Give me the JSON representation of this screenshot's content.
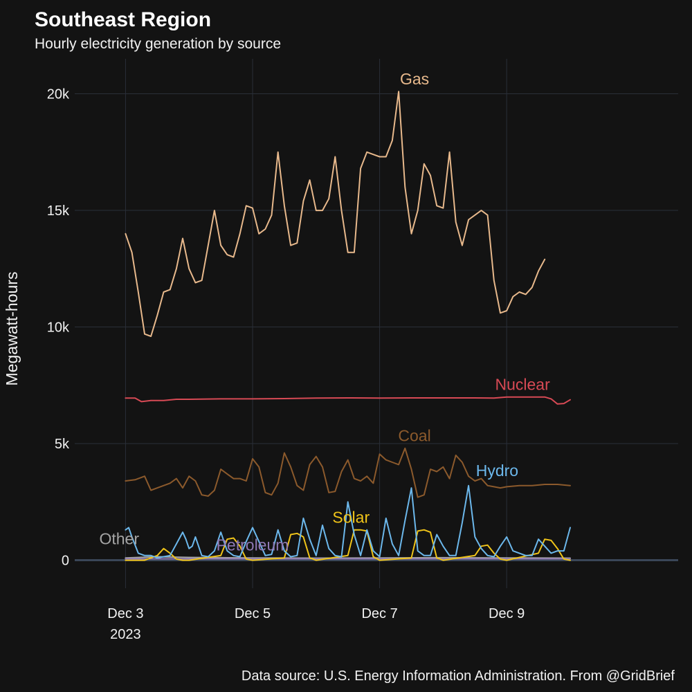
{
  "chart_data": {
    "type": "line",
    "title": "Southeast Region",
    "subtitle": "Hourly electricity generation by source",
    "ylabel": "Megawatt-hours",
    "xlabel": "",
    "caption": "Data source: U.S. Energy Information Administration. From @GridBrief",
    "x_unit": "days since Dec 3, 2023 00:00",
    "xlim": [
      -0.8,
      8.7
    ],
    "ylim": [
      -1200,
      21500
    ],
    "y_ticks": [
      {
        "value": 0,
        "label": "0"
      },
      {
        "value": 5000,
        "label": "5k"
      },
      {
        "value": 10000,
        "label": "10k"
      },
      {
        "value": 15000,
        "label": "15k"
      },
      {
        "value": 20000,
        "label": "20k"
      }
    ],
    "x_ticks": [
      {
        "value": 0,
        "label": "Dec 3",
        "sublabel": "2023"
      },
      {
        "value": 2,
        "label": "Dec 5",
        "sublabel": ""
      },
      {
        "value": 4,
        "label": "Dec 7",
        "sublabel": ""
      },
      {
        "value": 6,
        "label": "Dec 9",
        "sublabel": ""
      }
    ],
    "series": [
      {
        "name": "Gas",
        "color": "#e8b98c",
        "label": {
          "text": "Gas",
          "x": 4.55,
          "y": 20400
        },
        "x": [
          0.0,
          0.1,
          0.2,
          0.3,
          0.4,
          0.5,
          0.6,
          0.7,
          0.8,
          0.9,
          1.0,
          1.1,
          1.2,
          1.3,
          1.4,
          1.5,
          1.6,
          1.7,
          1.8,
          1.9,
          2.0,
          2.1,
          2.2,
          2.3,
          2.4,
          2.5,
          2.6,
          2.7,
          2.8,
          2.9,
          3.0,
          3.1,
          3.2,
          3.3,
          3.4,
          3.5,
          3.6,
          3.7,
          3.8,
          3.9,
          4.0,
          4.1,
          4.2,
          4.3,
          4.4,
          4.5,
          4.6,
          4.7,
          4.8,
          4.9,
          5.0,
          5.1,
          5.2,
          5.3,
          5.4,
          5.5,
          5.6,
          5.7,
          5.8,
          5.9,
          6.0,
          6.1,
          6.2,
          6.3,
          6.4,
          6.5,
          6.6,
          6.7,
          6.8,
          6.9,
          7.0
        ],
        "values": [
          14000,
          13200,
          11500,
          9700,
          9600,
          10500,
          11500,
          11600,
          12500,
          13800,
          12500,
          11900,
          12000,
          13500,
          15000,
          13500,
          13100,
          13000,
          14000,
          15200,
          15100,
          14000,
          14200,
          14800,
          17500,
          15200,
          13500,
          13600,
          15400,
          16300,
          15000,
          15000,
          15500,
          17300,
          15000,
          13200,
          13200,
          16800,
          17500,
          17400,
          17300,
          17300,
          18000,
          20100,
          16000,
          14000,
          15000,
          17000,
          16500,
          15200,
          15100,
          17500,
          14500,
          13500,
          14600,
          14800,
          15000,
          14800,
          12000,
          10600,
          10700,
          11300,
          11500,
          11400,
          11700,
          12400,
          12900,
          null,
          null,
          null,
          null
        ]
      },
      {
        "name": "Nuclear",
        "color": "#d84a55",
        "label": {
          "text": "Nuclear",
          "x": 6.25,
          "y": 7300
        },
        "x": [
          0.0,
          0.15,
          0.25,
          0.4,
          0.6,
          0.8,
          1.0,
          1.5,
          2.0,
          2.5,
          3.0,
          3.5,
          4.0,
          4.5,
          5.0,
          5.5,
          5.8,
          6.0,
          6.3,
          6.6,
          6.7,
          6.8,
          6.9,
          7.0
        ],
        "values": [
          6950,
          6950,
          6800,
          6850,
          6850,
          6900,
          6900,
          6920,
          6920,
          6930,
          6950,
          6960,
          6950,
          6960,
          6960,
          6960,
          6950,
          7000,
          7000,
          7000,
          6920,
          6700,
          6720,
          6880
        ]
      },
      {
        "name": "Coal",
        "color": "#8c5a2c",
        "label": {
          "text": "Coal",
          "x": 4.55,
          "y": 5100
        },
        "x": [
          0.0,
          0.15,
          0.3,
          0.4,
          0.5,
          0.6,
          0.7,
          0.8,
          0.9,
          1.0,
          1.1,
          1.2,
          1.3,
          1.4,
          1.5,
          1.6,
          1.7,
          1.8,
          1.9,
          2.0,
          2.1,
          2.2,
          2.3,
          2.4,
          2.5,
          2.6,
          2.7,
          2.8,
          2.9,
          3.0,
          3.1,
          3.2,
          3.3,
          3.4,
          3.5,
          3.6,
          3.7,
          3.8,
          3.9,
          4.0,
          4.1,
          4.2,
          4.3,
          4.4,
          4.5,
          4.6,
          4.7,
          4.8,
          4.9,
          5.0,
          5.1,
          5.2,
          5.3,
          5.4,
          5.5,
          5.6,
          5.7,
          5.8,
          5.9,
          6.0,
          6.2,
          6.4,
          6.6,
          6.8,
          7.0
        ],
        "values": [
          3400,
          3450,
          3600,
          3000,
          3100,
          3200,
          3300,
          3500,
          3100,
          3600,
          3400,
          2800,
          2750,
          3000,
          3900,
          3700,
          3500,
          3500,
          3400,
          4350,
          4000,
          2900,
          2800,
          3300,
          4600,
          4000,
          3200,
          3000,
          4100,
          4450,
          4000,
          2900,
          2950,
          3800,
          4300,
          3500,
          3400,
          3600,
          3300,
          4550,
          4300,
          4200,
          4100,
          4800,
          3900,
          2700,
          2800,
          3900,
          3800,
          4000,
          3500,
          4500,
          4200,
          3600,
          3400,
          3500,
          3200,
          3150,
          3100,
          3150,
          3200,
          3200,
          3250,
          3250,
          3200
        ]
      },
      {
        "name": "Hydro",
        "color": "#6cb8ec",
        "label": {
          "text": "Hydro",
          "x": 5.85,
          "y": 3600
        },
        "x": [
          0.0,
          0.05,
          0.1,
          0.2,
          0.3,
          0.4,
          0.5,
          0.6,
          0.7,
          0.8,
          0.9,
          0.95,
          1.0,
          1.05,
          1.1,
          1.2,
          1.3,
          1.4,
          1.5,
          1.6,
          1.7,
          1.8,
          1.9,
          2.0,
          2.1,
          2.2,
          2.3,
          2.4,
          2.5,
          2.6,
          2.7,
          2.8,
          2.9,
          3.0,
          3.1,
          3.2,
          3.3,
          3.4,
          3.5,
          3.6,
          3.7,
          3.8,
          3.9,
          4.0,
          4.1,
          4.2,
          4.3,
          4.4,
          4.5,
          4.6,
          4.7,
          4.8,
          4.9,
          5.0,
          5.1,
          5.2,
          5.3,
          5.4,
          5.5,
          5.6,
          5.7,
          5.8,
          5.9,
          6.0,
          6.1,
          6.2,
          6.3,
          6.4,
          6.5,
          6.6,
          6.7,
          6.8,
          6.9,
          7.0
        ],
        "values": [
          1300,
          1400,
          1000,
          300,
          200,
          200,
          100,
          150,
          200,
          700,
          1200,
          900,
          500,
          600,
          1000,
          200,
          150,
          400,
          1200,
          400,
          200,
          150,
          800,
          1400,
          800,
          200,
          250,
          1300,
          400,
          150,
          200,
          1800,
          900,
          200,
          1500,
          500,
          200,
          150,
          2500,
          1100,
          200,
          1300,
          400,
          150,
          1800,
          700,
          200,
          1700,
          3100,
          400,
          200,
          200,
          1100,
          600,
          200,
          200,
          1600,
          3200,
          1000,
          500,
          200,
          150,
          600,
          1000,
          400,
          300,
          200,
          200,
          900,
          600,
          300,
          400,
          400,
          1400
        ]
      },
      {
        "name": "Solar",
        "color": "#f0c419",
        "label": {
          "text": "Solar",
          "x": 3.55,
          "y": 1600
        },
        "x": [
          0.0,
          0.3,
          0.5,
          0.6,
          0.7,
          0.8,
          0.9,
          1.0,
          1.5,
          1.6,
          1.7,
          1.8,
          1.9,
          2.0,
          2.5,
          2.6,
          2.7,
          2.8,
          2.9,
          3.0,
          3.5,
          3.6,
          3.7,
          3.8,
          3.9,
          4.0,
          4.5,
          4.6,
          4.7,
          4.8,
          4.9,
          5.0,
          5.5,
          5.6,
          5.7,
          5.8,
          5.9,
          6.0,
          6.5,
          6.6,
          6.7,
          6.8,
          6.9,
          7.0
        ],
        "values": [
          0,
          0,
          200,
          500,
          300,
          50,
          0,
          0,
          200,
          900,
          950,
          600,
          50,
          0,
          100,
          1100,
          1150,
          1000,
          100,
          0,
          200,
          1300,
          1300,
          1250,
          150,
          0,
          100,
          1250,
          1300,
          1200,
          100,
          0,
          200,
          600,
          650,
          300,
          50,
          0,
          300,
          900,
          850,
          500,
          50,
          0
        ]
      },
      {
        "name": "Petroleum",
        "color": "#8f79b5",
        "label": {
          "text": "Petroleum",
          "x": 2.0,
          "y": 420
        },
        "x": [
          0.0,
          1.0,
          2.0,
          3.0,
          4.0,
          5.0,
          6.0,
          7.0
        ],
        "values": [
          60,
          60,
          60,
          60,
          60,
          60,
          60,
          60
        ]
      },
      {
        "name": "Other",
        "color": "#a5a5a5",
        "label": {
          "text": "Other",
          "x": -0.1,
          "y": 680
        },
        "x": [
          0.0,
          0.5,
          1.0,
          2.0,
          3.0,
          4.0,
          5.0,
          6.0,
          7.0
        ],
        "values": [
          100,
          150,
          120,
          100,
          90,
          100,
          110,
          100,
          90
        ]
      }
    ]
  }
}
